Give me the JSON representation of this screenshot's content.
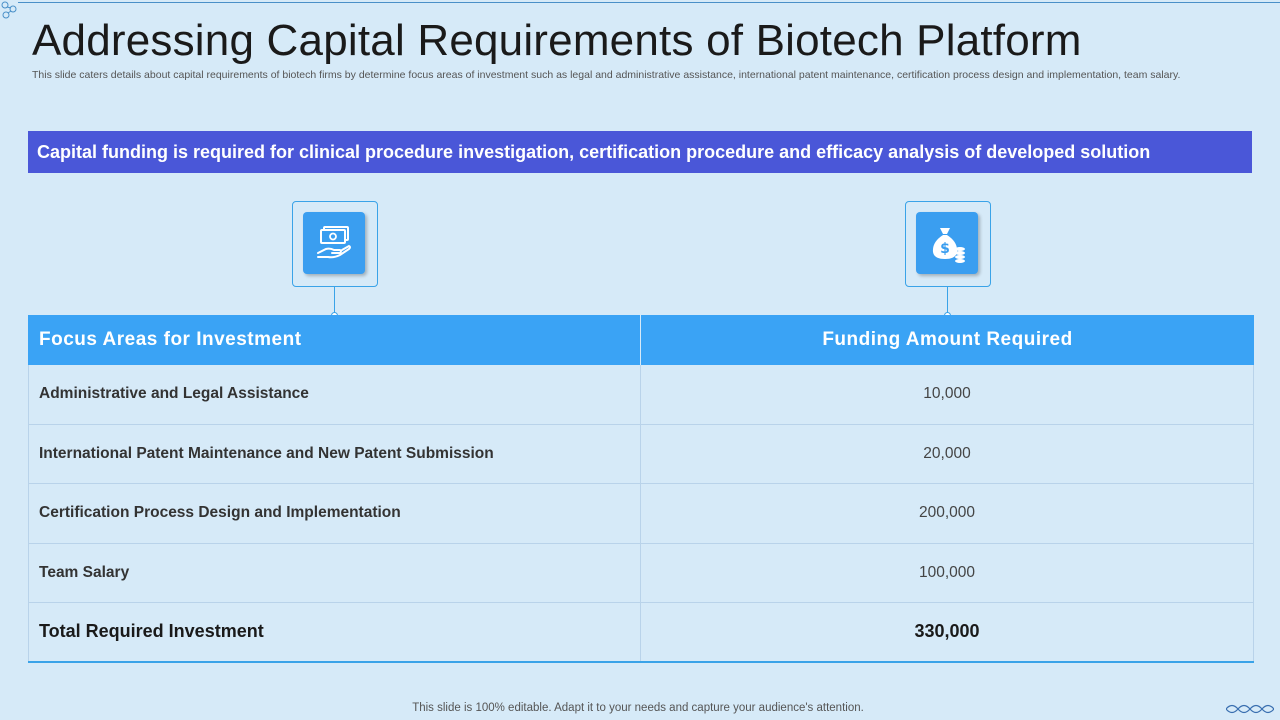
{
  "slide": {
    "title": "Addressing Capital Requirements of Biotech Platform",
    "subtitle": "This slide caters details about capital requirements of biotech firms by determine focus areas of investment such as legal and administrative assistance, international patent maintenance, certification process design and implementation, team salary.",
    "banner": "Capital funding is required for clinical procedure investigation, certification procedure and efficacy analysis of developed solution",
    "footer": "This slide is 100% editable. Adapt it to your needs and capture your audience's attention."
  },
  "icons": {
    "left": "money-in-hand-icon",
    "right": "money-bag-coins-icon"
  },
  "table": {
    "headers": [
      "Focus Areas for Investment",
      "Funding Amount Required"
    ],
    "rows": [
      {
        "area": "Administrative and Legal Assistance",
        "amount": "10,000"
      },
      {
        "area": "International Patent Maintenance and New Patent Submission",
        "amount": "20,000"
      },
      {
        "area": "Certification Process Design and Implementation",
        "amount": "200,000"
      },
      {
        "area": "Team Salary",
        "amount": "100,000"
      }
    ],
    "total": {
      "label": "Total Required Investment",
      "amount": "330,000"
    }
  },
  "colors": {
    "background": "#d6eaf8",
    "banner": "#4a57d8",
    "header": "#3aa3f5",
    "icon": "#3a9ef0"
  }
}
